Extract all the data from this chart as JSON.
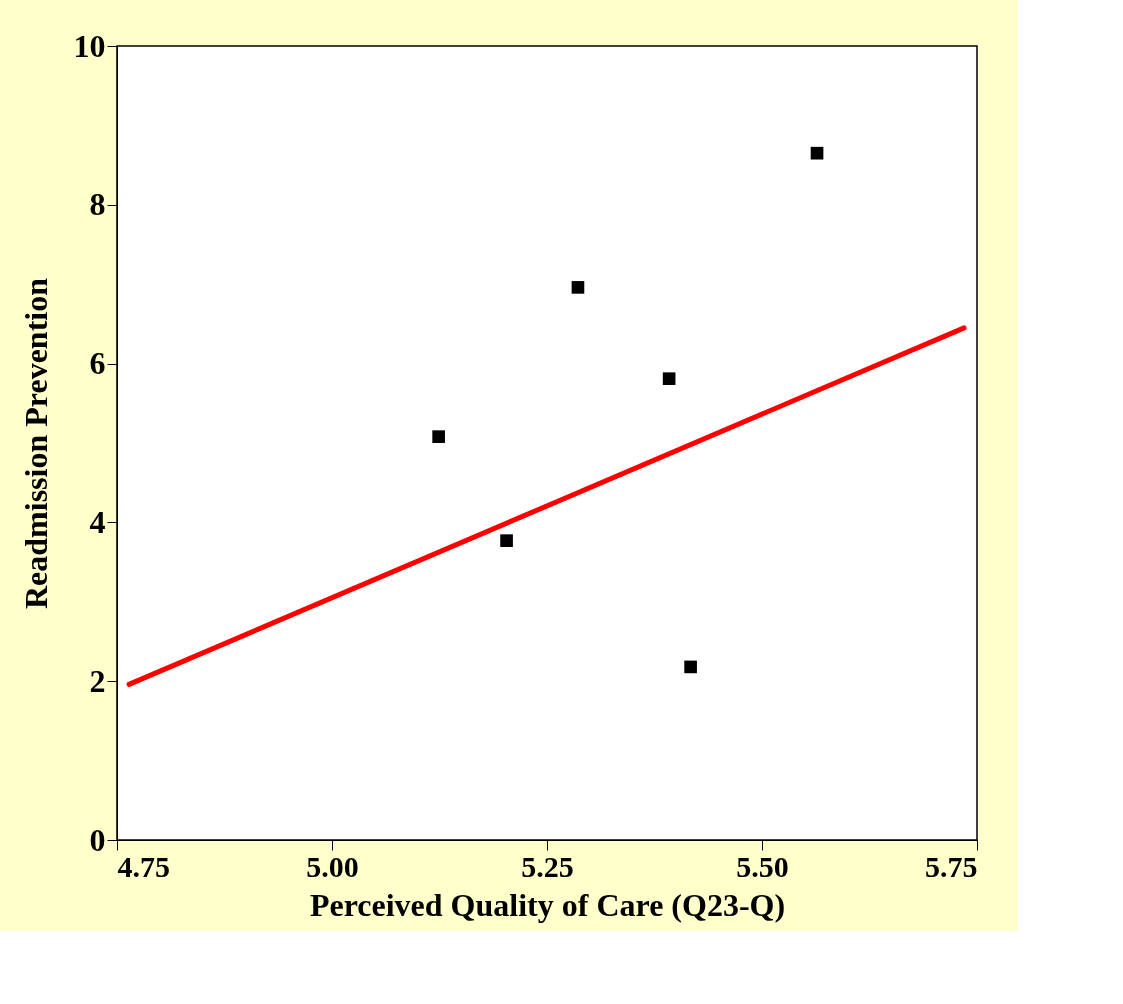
{
  "chart_data": {
    "type": "scatter",
    "xlabel": "Perceived Quality of Care (Q23-Q)",
    "ylabel": "Readmission Prevention",
    "xlim": [
      4.75,
      5.75
    ],
    "ylim": [
      0,
      10
    ],
    "xticks": [
      4.75,
      {
        "value": 5,
        "label": "5.00"
      },
      5.25,
      {
        "value": 5.5,
        "label": "5.50"
      },
      5.75
    ],
    "yticks": [
      0,
      2,
      4,
      6,
      8,
      10
    ],
    "grid": false,
    "legend": false,
    "series": [
      {
        "color": "#000000",
        "marker": "square",
        "x": [
          5.124,
          5.203,
          5.286,
          5.392,
          5.417,
          5.564
        ],
        "values": [
          5.08,
          3.77,
          6.96,
          5.81,
          2.18,
          8.65
        ]
      },
      {
        "type": "line",
        "color": "#ff0000",
        "x": [
          4.764,
          5.735
        ],
        "values": [
          1.96,
          6.45
        ]
      }
    ]
  }
}
